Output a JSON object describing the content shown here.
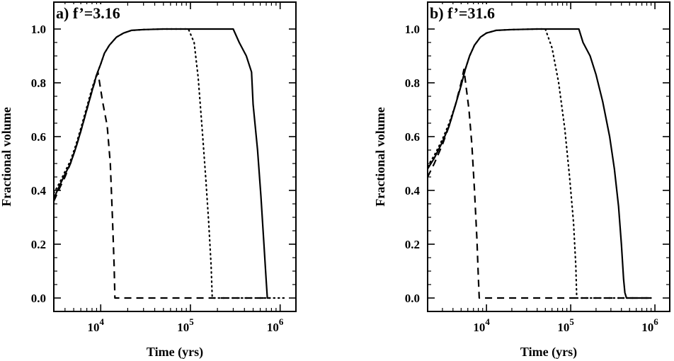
{
  "chart_data": [
    {
      "type": "line",
      "title": "a) f’=3.16",
      "xlabel": "Time (yrs)",
      "ylabel": "Fractional volume",
      "xscale": "log",
      "xlim": [
        3000,
        1500000
      ],
      "ylim": [
        -0.05,
        1.1
      ],
      "xticks": [
        {
          "value": 10000,
          "base": "10",
          "exp": "4"
        },
        {
          "value": 100000,
          "base": "10",
          "exp": "5"
        },
        {
          "value": 1000000,
          "base": "10",
          "exp": "6"
        }
      ],
      "yticks": [
        0.0,
        0.2,
        0.4,
        0.6,
        0.8,
        1.0
      ],
      "ytick_labels": [
        "0.0",
        "0.2",
        "0.4",
        "0.6",
        "0.8",
        "1.0"
      ],
      "series": [
        {
          "style": "solid",
          "points": [
            [
              3000,
              0.37
            ],
            [
              3500,
              0.42
            ],
            [
              4000,
              0.46
            ],
            [
              4600,
              0.5
            ],
            [
              5300,
              0.56
            ],
            [
              6000,
              0.62
            ],
            [
              7000,
              0.7
            ],
            [
              8000,
              0.77
            ],
            [
              9000,
              0.83
            ],
            [
              10000,
              0.87
            ],
            [
              11000,
              0.91
            ],
            [
              12500,
              0.94
            ],
            [
              15000,
              0.97
            ],
            [
              18000,
              0.985
            ],
            [
              22000,
              0.995
            ],
            [
              30000,
              0.998
            ],
            [
              50000,
              1.0
            ],
            [
              100000,
              1.0
            ],
            [
              200000,
              1.0
            ],
            [
              300000,
              1.0
            ],
            [
              350000,
              0.95
            ],
            [
              420000,
              0.9
            ],
            [
              480000,
              0.84
            ],
            [
              500000,
              0.72
            ],
            [
              560000,
              0.55
            ],
            [
              610000,
              0.38
            ],
            [
              660000,
              0.2
            ],
            [
              700000,
              0.06
            ],
            [
              720000,
              0.0
            ],
            [
              780000,
              0.0
            ]
          ]
        },
        {
          "style": "dotted",
          "points": [
            [
              3000,
              0.39
            ],
            [
              3500,
              0.43
            ],
            [
              4000,
              0.47
            ],
            [
              4600,
              0.51
            ],
            [
              5300,
              0.57
            ],
            [
              6000,
              0.63
            ],
            [
              7000,
              0.71
            ],
            [
              8000,
              0.78
            ],
            [
              9000,
              0.83
            ],
            [
              10000,
              0.87
            ],
            [
              11000,
              0.91
            ],
            [
              12500,
              0.94
            ],
            [
              15000,
              0.97
            ],
            [
              18000,
              0.985
            ],
            [
              22000,
              0.995
            ],
            [
              30000,
              0.998
            ],
            [
              50000,
              1.0
            ],
            [
              95000,
              1.0
            ],
            [
              110000,
              0.95
            ],
            [
              122000,
              0.82
            ],
            [
              135000,
              0.63
            ],
            [
              148000,
              0.45
            ],
            [
              160000,
              0.28
            ],
            [
              170000,
              0.12
            ],
            [
              175000,
              0.0
            ],
            [
              300000,
              0.0
            ],
            [
              600000,
              0.0
            ],
            [
              1150000,
              0.0
            ]
          ]
        },
        {
          "style": "dashed",
          "points": [
            [
              3000,
              0.36
            ],
            [
              3500,
              0.41
            ],
            [
              4000,
              0.45
            ],
            [
              4600,
              0.5
            ],
            [
              5300,
              0.56
            ],
            [
              6000,
              0.62
            ],
            [
              7000,
              0.7
            ],
            [
              8000,
              0.77
            ],
            [
              9300,
              0.84
            ],
            [
              10500,
              0.73
            ],
            [
              11800,
              0.64
            ],
            [
              12800,
              0.5
            ],
            [
              13500,
              0.3
            ],
            [
              14100,
              0.12
            ],
            [
              14400,
              0.0
            ],
            [
              30000,
              0.0
            ],
            [
              100000,
              0.0
            ],
            [
              300000,
              0.0
            ],
            [
              700000,
              0.0
            ]
          ]
        }
      ]
    },
    {
      "type": "line",
      "title": "b) f’=31.6",
      "xlabel": "Time (yrs)",
      "ylabel": "Fractional volume",
      "xscale": "log",
      "xlim": [
        2000,
        1500000
      ],
      "ylim": [
        -0.05,
        1.1
      ],
      "xticks": [
        {
          "value": 10000,
          "base": "10",
          "exp": "4"
        },
        {
          "value": 100000,
          "base": "10",
          "exp": "5"
        },
        {
          "value": 1000000,
          "base": "10",
          "exp": "6"
        }
      ],
      "yticks": [
        0.0,
        0.2,
        0.4,
        0.6,
        0.8,
        1.0
      ],
      "ytick_labels": [
        "0.0",
        "0.2",
        "0.4",
        "0.6",
        "0.8",
        "1.0"
      ],
      "series": [
        {
          "style": "solid",
          "points": [
            [
              2000,
              0.48
            ],
            [
              2400,
              0.52
            ],
            [
              3000,
              0.58
            ],
            [
              3600,
              0.64
            ],
            [
              4300,
              0.72
            ],
            [
              5000,
              0.79
            ],
            [
              5600,
              0.85
            ],
            [
              6300,
              0.9
            ],
            [
              7200,
              0.94
            ],
            [
              8500,
              0.97
            ],
            [
              10000,
              0.985
            ],
            [
              13000,
              0.995
            ],
            [
              20000,
              0.998
            ],
            [
              40000,
              1.0
            ],
            [
              80000,
              1.0
            ],
            [
              125000,
              1.0
            ],
            [
              140000,
              0.95
            ],
            [
              170000,
              0.9
            ],
            [
              200000,
              0.83
            ],
            [
              240000,
              0.73
            ],
            [
              290000,
              0.6
            ],
            [
              330000,
              0.48
            ],
            [
              370000,
              0.34
            ],
            [
              400000,
              0.2
            ],
            [
              425000,
              0.07
            ],
            [
              440000,
              0.02
            ],
            [
              460000,
              0.0
            ],
            [
              900000,
              0.0
            ]
          ]
        },
        {
          "style": "dotted",
          "points": [
            [
              2000,
              0.49
            ],
            [
              2400,
              0.53
            ],
            [
              3000,
              0.59
            ],
            [
              3600,
              0.65
            ],
            [
              4300,
              0.72
            ],
            [
              5000,
              0.79
            ],
            [
              5600,
              0.85
            ],
            [
              6300,
              0.9
            ],
            [
              7200,
              0.94
            ],
            [
              8500,
              0.97
            ],
            [
              10000,
              0.985
            ],
            [
              13000,
              0.995
            ],
            [
              20000,
              0.998
            ],
            [
              40000,
              1.0
            ],
            [
              50000,
              1.0
            ],
            [
              60000,
              0.93
            ],
            [
              72000,
              0.8
            ],
            [
              85000,
              0.63
            ],
            [
              97000,
              0.45
            ],
            [
              108000,
              0.28
            ],
            [
              115000,
              0.12
            ],
            [
              118000,
              0.0
            ],
            [
              300000,
              0.0
            ],
            [
              900000,
              0.0
            ]
          ]
        },
        {
          "style": "dashed",
          "points": [
            [
              2000,
              0.45
            ],
            [
              2400,
              0.5
            ],
            [
              3000,
              0.57
            ],
            [
              3600,
              0.64
            ],
            [
              4300,
              0.72
            ],
            [
              5000,
              0.8
            ],
            [
              5400,
              0.85
            ],
            [
              6200,
              0.7
            ],
            [
              6700,
              0.57
            ],
            [
              7200,
              0.4
            ],
            [
              7700,
              0.22
            ],
            [
              8000,
              0.08
            ],
            [
              8200,
              0.0
            ],
            [
              20000,
              0.0
            ],
            [
              100000,
              0.0
            ],
            [
              400000,
              0.0
            ],
            [
              900000,
              0.0
            ]
          ]
        }
      ]
    }
  ]
}
